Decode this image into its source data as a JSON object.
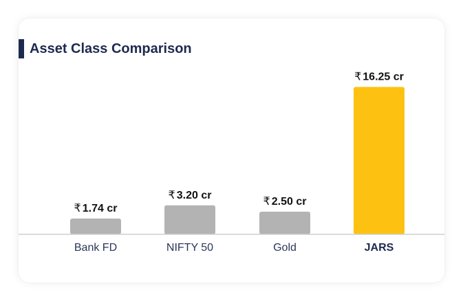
{
  "chart_data": {
    "type": "bar",
    "title": "Asset Class Comparison",
    "categories": [
      "Bank FD",
      "NIFTY 50",
      "Gold",
      "JARS"
    ],
    "values": [
      1.74,
      3.2,
      2.5,
      16.25
    ],
    "data_labels": [
      "1.74 cr",
      "3.20 cr",
      "2.50 cr",
      "16.25 cr"
    ],
    "currency_symbol": "₹",
    "unit": "cr",
    "highlight_category": "JARS",
    "ylim": [
      0,
      17.5
    ],
    "grid": false,
    "xlabel": "",
    "ylabel": "",
    "colors": {
      "default_bar": "#b3b3b3",
      "highlight_bar": "#fdc112",
      "title_accent": "#1d2a4f",
      "axis_line": "#cfcfcf"
    }
  }
}
